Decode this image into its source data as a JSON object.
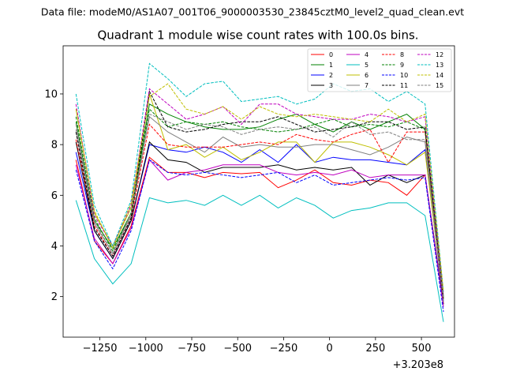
{
  "figure": {
    "suptitle": "Data file: modeM0/AS1A07_001T06_9000003530_23845cztM0_level2_quad_clean.evt"
  },
  "chart_data": {
    "type": "line",
    "title": "Quadrant 1 module wise count rates with 100.0s bins.",
    "xlabel": "",
    "ylabel": "",
    "x_offset_label": "+3.203e8",
    "xlim": [
      -1450,
      680
    ],
    "ylim": [
      0.4,
      11.9
    ],
    "xticks": [
      -1250,
      -1000,
      -750,
      -500,
      -250,
      0,
      250,
      500
    ],
    "xtick_labels": [
      "−1250",
      "−1000",
      "−750",
      "−500",
      "−250",
      "0",
      "250",
      "500"
    ],
    "yticks": [
      2,
      4,
      6,
      8,
      10
    ],
    "ytick_labels": [
      "2",
      "4",
      "6",
      "8",
      "10"
    ],
    "legend_position": "top-right",
    "x": [
      -1380,
      -1280,
      -1180,
      -1080,
      -980,
      -880,
      -780,
      -680,
      -580,
      -480,
      -380,
      -280,
      -180,
      -80,
      20,
      120,
      220,
      320,
      420,
      520,
      620
    ],
    "series": [
      {
        "name": "0",
        "color": "#ff0000",
        "dash": "solid",
        "values": [
          7.4,
          4.2,
          3.3,
          4.8,
          7.5,
          6.9,
          6.9,
          6.7,
          6.9,
          6.85,
          6.9,
          6.3,
          6.6,
          7.0,
          6.5,
          6.4,
          6.6,
          6.5,
          6.0,
          6.8,
          1.7
        ]
      },
      {
        "name": "1",
        "color": "#008000",
        "dash": "solid",
        "values": [
          8.9,
          5.0,
          3.9,
          5.3,
          9.6,
          9.2,
          8.9,
          8.7,
          8.6,
          8.6,
          8.7,
          9.0,
          9.2,
          8.8,
          8.5,
          8.9,
          8.6,
          8.9,
          9.2,
          8.6,
          1.9
        ]
      },
      {
        "name": "2",
        "color": "#0000ff",
        "dash": "solid",
        "values": [
          7.7,
          4.6,
          3.5,
          5.0,
          8.0,
          7.8,
          7.7,
          7.9,
          7.7,
          7.3,
          7.8,
          7.3,
          8.0,
          7.3,
          7.5,
          7.4,
          7.4,
          7.3,
          7.2,
          7.8,
          1.8
        ]
      },
      {
        "name": "3",
        "color": "#000000",
        "dash": "solid",
        "values": [
          8.1,
          4.6,
          3.5,
          5.0,
          8.1,
          7.4,
          7.3,
          6.9,
          7.1,
          7.1,
          7.1,
          7.2,
          7.0,
          7.1,
          7.0,
          7.1,
          6.4,
          6.8,
          6.5,
          6.8,
          1.7
        ]
      },
      {
        "name": "4",
        "color": "#bf00bf",
        "dash": "solid",
        "values": [
          7.2,
          4.3,
          3.3,
          4.7,
          7.4,
          6.6,
          6.9,
          7.0,
          7.2,
          7.2,
          7.2,
          6.9,
          6.8,
          6.9,
          6.8,
          7.0,
          6.7,
          6.8,
          6.8,
          6.8,
          1.6
        ]
      },
      {
        "name": "5",
        "color": "#00bfbf",
        "dash": "solid",
        "values": [
          5.8,
          3.5,
          2.5,
          3.3,
          5.9,
          5.7,
          5.8,
          5.6,
          6.0,
          5.6,
          6.0,
          5.5,
          5.9,
          5.6,
          5.1,
          5.4,
          5.5,
          5.7,
          5.7,
          5.2,
          1.0
        ]
      },
      {
        "name": "6",
        "color": "#bfbf00",
        "dash": "solid",
        "values": [
          9.4,
          5.3,
          4.0,
          5.5,
          10.0,
          7.8,
          8.0,
          7.5,
          7.9,
          7.4,
          7.7,
          8.1,
          8.1,
          7.3,
          8.1,
          8.1,
          7.9,
          7.6,
          7.2,
          7.7,
          1.9
        ]
      },
      {
        "name": "7",
        "color": "#808080",
        "dash": "solid",
        "values": [
          8.6,
          4.9,
          3.7,
          5.2,
          9.1,
          8.5,
          8.1,
          7.7,
          8.3,
          7.9,
          8.0,
          7.9,
          7.9,
          8.0,
          8.0,
          7.8,
          7.6,
          7.9,
          8.3,
          8.1,
          1.8
        ]
      },
      {
        "name": "8",
        "color": "#ff0000",
        "dash": "dashed",
        "values": [
          8.2,
          4.8,
          3.6,
          5.1,
          8.8,
          8.0,
          7.9,
          7.9,
          7.9,
          8.0,
          8.1,
          8.0,
          8.4,
          8.2,
          8.1,
          8.4,
          8.6,
          7.3,
          8.5,
          8.5,
          1.9
        ]
      },
      {
        "name": "9",
        "color": "#008000",
        "dash": "dashed",
        "values": [
          9.1,
          5.1,
          3.8,
          5.3,
          9.4,
          8.7,
          8.9,
          8.8,
          8.9,
          8.7,
          8.6,
          8.5,
          8.6,
          8.8,
          9.0,
          8.7,
          8.8,
          8.7,
          8.9,
          8.6,
          2.0
        ]
      },
      {
        "name": "10",
        "color": "#0000ff",
        "dash": "dashed",
        "values": [
          7.0,
          4.2,
          3.1,
          4.6,
          7.4,
          6.9,
          6.8,
          6.9,
          6.8,
          6.7,
          6.8,
          6.9,
          6.5,
          6.8,
          6.4,
          6.5,
          6.6,
          6.7,
          6.6,
          6.7,
          1.4
        ]
      },
      {
        "name": "11",
        "color": "#000000",
        "dash": "dashed",
        "values": [
          8.5,
          4.7,
          3.6,
          5.1,
          10.1,
          8.7,
          8.5,
          8.6,
          8.8,
          8.9,
          8.9,
          9.1,
          8.8,
          8.5,
          8.6,
          8.7,
          8.9,
          8.9,
          8.6,
          8.7,
          1.9
        ]
      },
      {
        "name": "12",
        "color": "#bf00bf",
        "dash": "dashed",
        "values": [
          9.6,
          5.2,
          4.0,
          5.6,
          10.2,
          9.6,
          9.0,
          9.2,
          9.5,
          8.8,
          9.6,
          9.6,
          9.2,
          9.1,
          9.0,
          9.0,
          9.2,
          9.1,
          8.9,
          9.1,
          2.1
        ]
      },
      {
        "name": "13",
        "color": "#00bfbf",
        "dash": "dashed",
        "values": [
          10.0,
          5.6,
          4.0,
          5.8,
          11.2,
          10.6,
          9.9,
          10.4,
          10.5,
          9.7,
          9.8,
          9.9,
          9.6,
          9.8,
          10.4,
          10.1,
          10.2,
          9.7,
          10.1,
          9.6,
          2.2
        ]
      },
      {
        "name": "14",
        "color": "#bfbf00",
        "dash": "dashed",
        "values": [
          9.4,
          5.4,
          3.9,
          5.7,
          9.9,
          10.4,
          9.4,
          9.2,
          9.5,
          9.0,
          9.5,
          9.2,
          9.1,
          9.2,
          9.1,
          9.0,
          8.9,
          9.4,
          8.9,
          9.2,
          2.2
        ]
      },
      {
        "name": "15",
        "color": "#808080",
        "dash": "dashed",
        "values": [
          8.8,
          5.0,
          3.7,
          5.3,
          9.2,
          8.9,
          8.6,
          8.8,
          8.7,
          8.4,
          8.6,
          8.7,
          8.6,
          8.7,
          8.3,
          8.9,
          8.4,
          8.5,
          8.2,
          8.2,
          1.9
        ]
      }
    ]
  }
}
